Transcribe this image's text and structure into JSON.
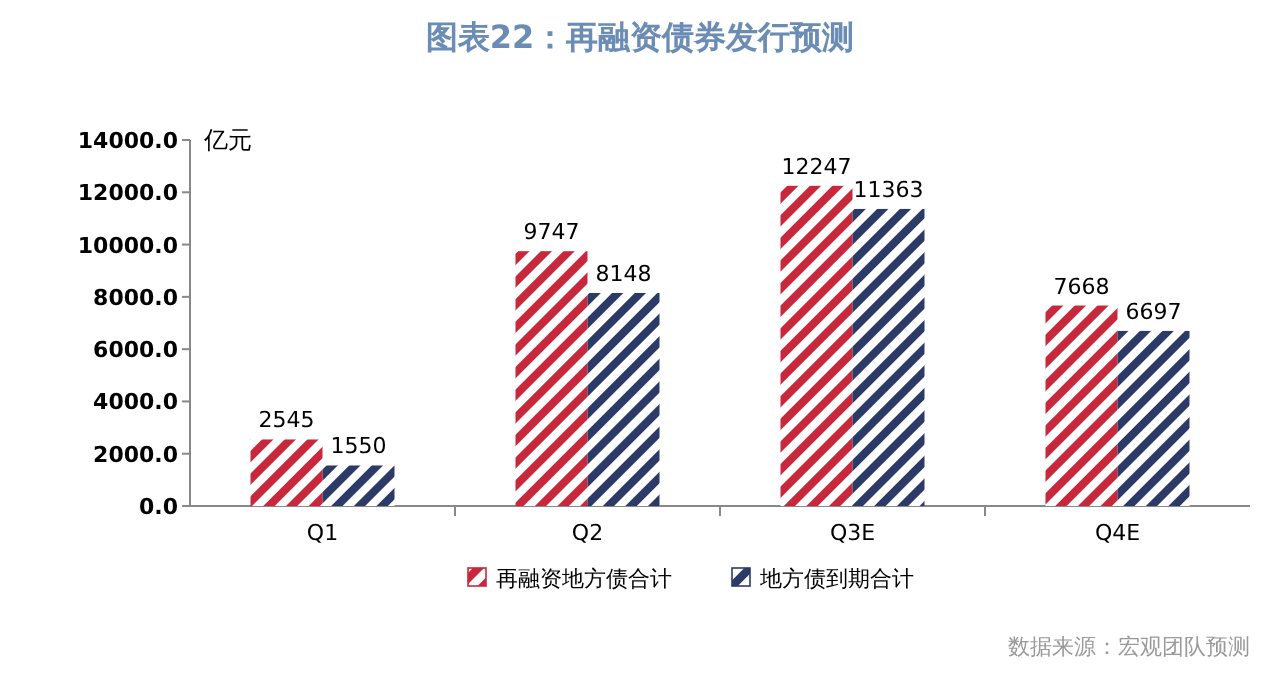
{
  "chart_data": {
    "type": "bar",
    "title": "图表22：再融资债券发行预测",
    "ylabel": "亿元",
    "categories": [
      "Q1",
      "Q2",
      "Q3E",
      "Q4E"
    ],
    "series": [
      {
        "name": "再融资地方债合计",
        "color": "#c8283c",
        "values": [
          2545,
          9747,
          12247,
          7668
        ]
      },
      {
        "name": "地方债到期合计",
        "color": "#2b3a67",
        "values": [
          1550,
          8148,
          11363,
          6697
        ]
      }
    ],
    "ylim": [
      0,
      14000
    ],
    "yticks": [
      {
        "value": 0,
        "label": "0.0"
      },
      {
        "value": 2000,
        "label": "2000.0"
      },
      {
        "value": 4000,
        "label": "4000.0"
      },
      {
        "value": 6000,
        "label": "6000.0"
      },
      {
        "value": 8000,
        "label": "8000.0"
      },
      {
        "value": 10000,
        "label": "10000.0"
      },
      {
        "value": 12000,
        "label": "12000.0"
      },
      {
        "value": 14000,
        "label": "14000.0"
      }
    ],
    "data_labels": true,
    "legend": "bottom",
    "annotations": [
      "数据来源：宏观团队预测"
    ]
  }
}
